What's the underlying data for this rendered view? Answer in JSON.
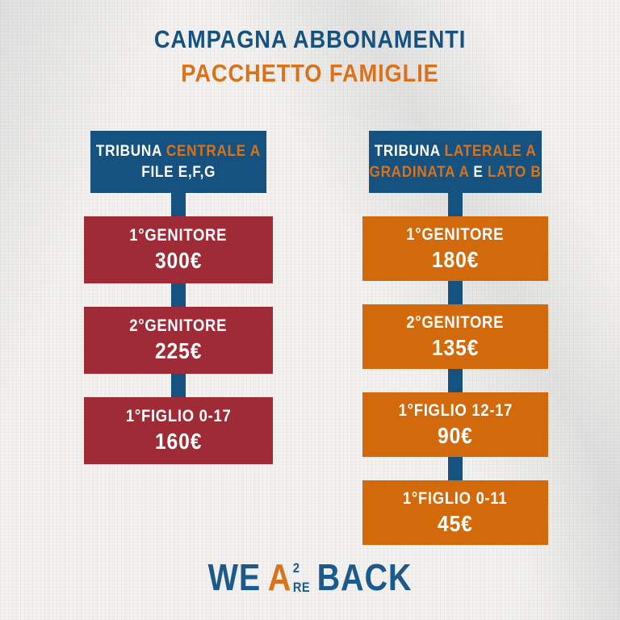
{
  "page": {
    "title": "CAMPAGNA ABBONAMENTI",
    "subtitle": "PACCHETTO FAMIGLIE"
  },
  "colors": {
    "blue": "#16527f",
    "orange_box": "#d2690a",
    "orange_text": "#d8731c",
    "red_box": "#9e2b36",
    "background": "#f3f2f0",
    "text_on_box": "#ffffff"
  },
  "columns": [
    {
      "id": "tribuna-centrale",
      "header": {
        "line1": [
          {
            "text": "TRIBUNA ",
            "color": "white"
          },
          {
            "text": "CENTRALE A",
            "color": "orange"
          }
        ],
        "line2": [
          {
            "text": "FILE E,F,G",
            "color": "white"
          }
        ]
      },
      "tiers": [
        {
          "label": "1°GENITORE",
          "price": "300€"
        },
        {
          "label": "2°GENITORE",
          "price": "225€"
        },
        {
          "label": "1°FIGLIO 0-17",
          "price": "160€"
        }
      ]
    },
    {
      "id": "tribuna-laterale",
      "header": {
        "line1": [
          {
            "text": "TRIBUNA ",
            "color": "white"
          },
          {
            "text": "LATERALE A",
            "color": "orange"
          }
        ],
        "line2": [
          {
            "text": "GRADINATA A ",
            "color": "orange"
          },
          {
            "text": "E",
            "color": "white"
          },
          {
            "text": " LATO B",
            "color": "orange"
          }
        ]
      },
      "tiers": [
        {
          "label": "1°GENITORE",
          "price": "180€"
        },
        {
          "label": "2°GENITORE",
          "price": "135€"
        },
        {
          "label": "1°FIGLIO 12-17",
          "price": "90€"
        },
        {
          "label": "1°FIGLIO 0-11",
          "price": "45€"
        }
      ]
    }
  ],
  "logo": {
    "we": "WE",
    "a": "A",
    "sup": "2",
    "re": "RE",
    "back": "BACK"
  }
}
